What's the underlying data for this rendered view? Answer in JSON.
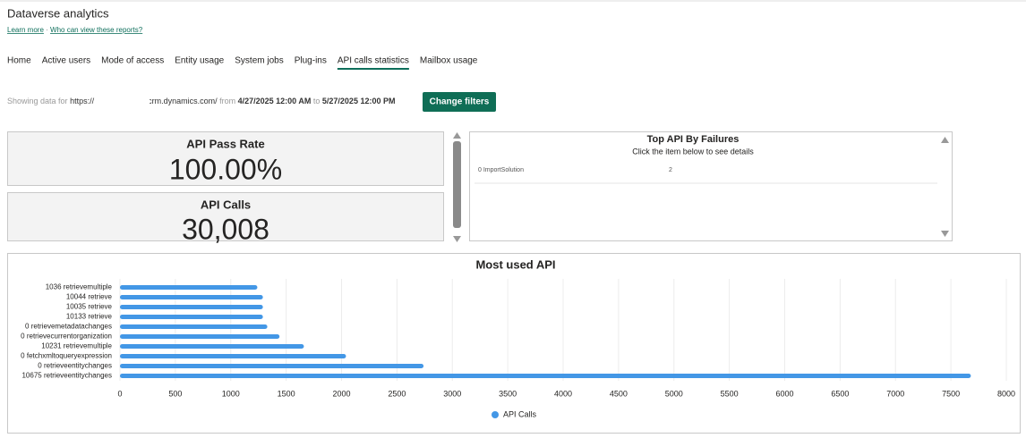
{
  "header": {
    "title": "Dataverse analytics",
    "links": [
      "Learn more",
      "Who can view these reports?"
    ]
  },
  "tabs": [
    {
      "label": "Home"
    },
    {
      "label": "Active users"
    },
    {
      "label": "Mode of access"
    },
    {
      "label": "Entity usage"
    },
    {
      "label": "System jobs"
    },
    {
      "label": "Plug-ins"
    },
    {
      "label": "API calls statistics",
      "selected": true
    },
    {
      "label": "Mailbox usage"
    }
  ],
  "filter": {
    "prefix": "Showing data for",
    "url_start": "https://",
    "url_end": "crm.dynamics.com/",
    "from_label": "from",
    "from": "4/27/2025 12:00 AM",
    "to_label": "to",
    "to": "5/27/2025 12:00 PM",
    "button": "Change filters"
  },
  "cards": [
    {
      "title": "API Pass Rate",
      "value": "100.00%"
    },
    {
      "title": "API Calls",
      "value": "30,008"
    }
  ],
  "top_failures": {
    "title": "Top API By Failures",
    "subtitle": "Click the item below to see details",
    "rows": [
      [
        "0 ImportSolution",
        "2"
      ]
    ]
  },
  "chart_data": {
    "type": "hbar",
    "title": "Most used API",
    "categories": [
      "1036 retrievemultiple",
      "10044 retrieve",
      "10035 retrieve",
      "10133 retrieve",
      "0 retrievemetadatachanges",
      "0 retrievecurrentorganization",
      "10231 retrievemultiple",
      "0 fetchxmltoqueryexpression",
      "0 retrieveentitychanges",
      "10675 retrieveentitychanges"
    ],
    "series": [
      {
        "name": "API Calls",
        "color": "#4397e6",
        "values": [
          1240,
          1290,
          1290,
          1290,
          1330,
          1440,
          1660,
          2040,
          2740,
          7680
        ]
      }
    ],
    "xlim": [
      0,
      8000
    ],
    "xticks": [
      0,
      500,
      1000,
      1500,
      2000,
      2500,
      3000,
      3500,
      4000,
      4500,
      5000,
      5500,
      6000,
      6500,
      7000,
      7500,
      8000
    ],
    "grid": true,
    "legend": "bottom"
  }
}
